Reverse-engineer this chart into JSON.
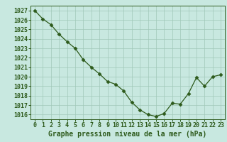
{
  "x": [
    0,
    1,
    2,
    3,
    4,
    5,
    6,
    7,
    8,
    9,
    10,
    11,
    12,
    13,
    14,
    15,
    16,
    17,
    18,
    19,
    20,
    21,
    22,
    23
  ],
  "y": [
    1027.0,
    1026.1,
    1025.5,
    1024.5,
    1023.7,
    1023.0,
    1021.8,
    1021.0,
    1020.3,
    1019.5,
    1019.2,
    1018.5,
    1017.3,
    1016.5,
    1016.0,
    1015.8,
    1016.1,
    1017.2,
    1017.1,
    1018.2,
    1019.9,
    1019.0,
    1020.0,
    1020.2
  ],
  "line_color": "#2d5a1b",
  "marker": "D",
  "marker_size": 2.5,
  "background_color": "#c8e8e0",
  "grid_color": "#a0c8b8",
  "xlabel": "Graphe pression niveau de la mer (hPa)",
  "xlabel_color": "#2d5a1b",
  "xlabel_fontsize": 7,
  "tick_color": "#2d5a1b",
  "tick_fontsize": 6,
  "ylim": [
    1015.5,
    1027.5
  ],
  "yticks": [
    1016,
    1017,
    1018,
    1019,
    1020,
    1021,
    1022,
    1023,
    1024,
    1025,
    1026,
    1027
  ],
  "xlim": [
    -0.5,
    23.5
  ],
  "xticks": [
    0,
    1,
    2,
    3,
    4,
    5,
    6,
    7,
    8,
    9,
    10,
    11,
    12,
    13,
    14,
    15,
    16,
    17,
    18,
    19,
    20,
    21,
    22,
    23
  ]
}
